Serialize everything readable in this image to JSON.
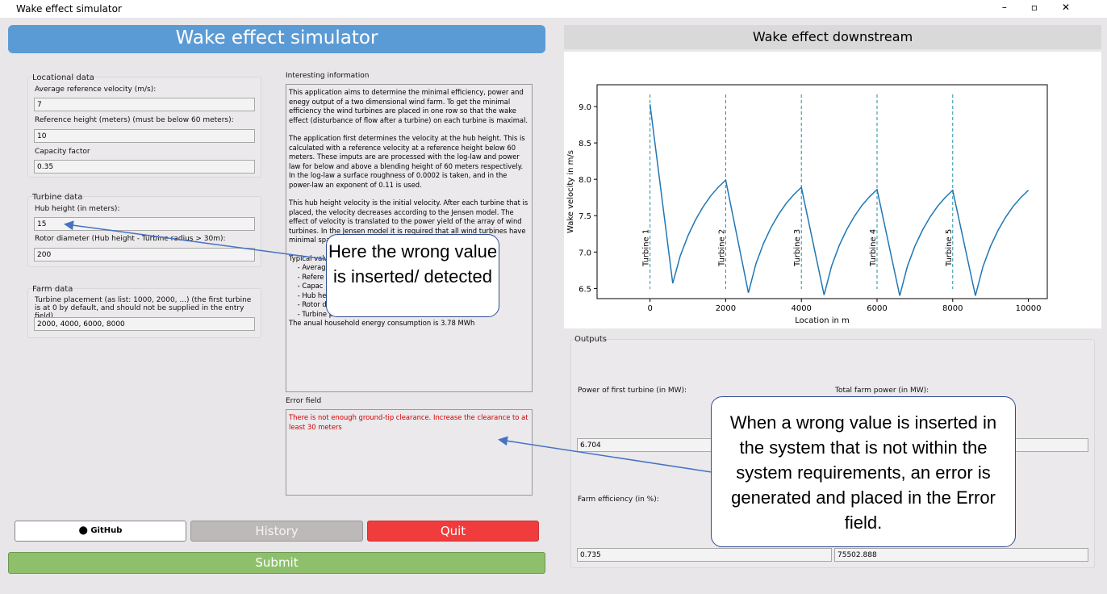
{
  "window": {
    "title": "Wake effect simulator"
  },
  "header": {
    "title": "Wake effect simulator"
  },
  "locational": {
    "title": "Locational data",
    "fields": [
      {
        "label": "Average reference velocity (m/s):",
        "value": "7"
      },
      {
        "label": "Reference height (meters) (must be below 60 meters):",
        "value": "10"
      },
      {
        "label": "Capacity factor",
        "value": "0.35"
      }
    ]
  },
  "turbine": {
    "title": "Turbine data",
    "fields": [
      {
        "label": "Hub height (in meters):",
        "value": "15"
      },
      {
        "label": "Rotor diameter (Hub height - Turbine radius > 30m):",
        "value": "200"
      }
    ]
  },
  "farm": {
    "title": "Farm data",
    "fields": [
      {
        "label": "Turbine placement (as list: 1000, 2000, ...) (the first turbine is at 0 by default, and should not be supplied in the entry field)",
        "value": "2000, 4000, 6000, 8000"
      }
    ]
  },
  "info": {
    "title": "Interesting information",
    "paragraphs": [
      "This application aims to determine the minimal efficiency, power and enegy output of a two dimensional wind farm. To get the minimal efficiency the wind turbines are placed in one row so that the wake effect (disturbance of flow after a turbine) on each turbine is maximal.",
      "The application first determines the velocity at the hub height. This is calculated with a reference velocity at a reference height below 60 meters. These imputs are are processed with the log-law and power law for below and above a blending height of 60 meters respectively. In the log-law a surface roughness of 0.0002 is taken, and in the power-law an exponent of 0.11 is used.",
      "This hub height velocity is the initial velocity. After each turbine that is placed, the velocity decreases according to the Jensen model. The effect of velocity is translated to the power yield of the array of wind turbines. In the Jensen model it is required that all wind turbines have minimal spacing of 3",
      "Typical valu",
      "    - Averag",
      "    - Refere",
      "    - Capac",
      "    - Hub he",
      "    - Rotor d",
      "    - Turbine placement -> 7-10 rotor diameters",
      "The anual household energy consumption is 3.78 MWh"
    ]
  },
  "error": {
    "title": "Error field",
    "message": "There is not enough ground-tip clearance. Increase the clearance to at least 30 meters"
  },
  "buttons": {
    "github": "GitHub",
    "history": "History",
    "quit": "Quit",
    "submit": "Submit"
  },
  "outputs": {
    "title": "Outputs",
    "fields": [
      {
        "label": "Power of first turbine (in MW):",
        "value": "6.704"
      },
      {
        "label": "Total farm power (in MW):"
      },
      {
        "label": "Farm efficiency (in %):",
        "value": "0.735"
      },
      {
        "value": "75502.888"
      }
    ]
  },
  "callouts": [
    "Here the wrong value is inserted/ detected",
    "When a wrong value is inserted in the system that is not within the system requirements, an error is generated and placed in the Error field."
  ],
  "chart_data": {
    "type": "line",
    "title": "Wake effect downstream",
    "x_label": "Location in m",
    "y_label": "Wake velocity in m/s",
    "x": [
      0,
      600,
      800,
      1000,
      1200,
      1400,
      1600,
      1800,
      2000,
      2600,
      2800,
      3000,
      3200,
      3400,
      3600,
      3800,
      4000,
      4600,
      4800,
      5000,
      5200,
      5400,
      5600,
      5800,
      6000,
      6600,
      6800,
      7000,
      7200,
      7400,
      7600,
      7800,
      8000,
      8600,
      8800,
      9000,
      9200,
      9400,
      9600,
      9800,
      10000
    ],
    "values": [
      9.03,
      6.57,
      6.95,
      7.22,
      7.44,
      7.62,
      7.77,
      7.89,
      7.99,
      6.44,
      6.84,
      7.12,
      7.34,
      7.52,
      7.67,
      7.79,
      7.89,
      6.41,
      6.81,
      7.09,
      7.31,
      7.49,
      7.64,
      7.76,
      7.86,
      6.4,
      6.8,
      7.08,
      7.3,
      7.48,
      7.63,
      7.75,
      7.85,
      6.4,
      6.8,
      7.08,
      7.3,
      7.48,
      7.63,
      7.75,
      7.85
    ],
    "color": "#1f77b4",
    "annotations": [
      {
        "x": 0,
        "label": "Turbine 1"
      },
      {
        "x": 2000,
        "label": "Turbine 2"
      },
      {
        "x": 4000,
        "label": "Turbine 3"
      },
      {
        "x": 6000,
        "label": "Turbine 4"
      },
      {
        "x": 8000,
        "label": "Turbine 5"
      }
    ],
    "xlim": [
      -1400,
      10500
    ],
    "ylim": [
      6.36,
      9.3
    ],
    "xticks": [
      0,
      2000,
      4000,
      6000,
      8000,
      10000
    ],
    "yticks": [
      6.5,
      {
        "value": 7,
        "label": "7.0"
      },
      7.5,
      {
        "value": 8,
        "label": "8.0"
      },
      8.5,
      {
        "value": 9,
        "label": "9.0"
      }
    ]
  }
}
